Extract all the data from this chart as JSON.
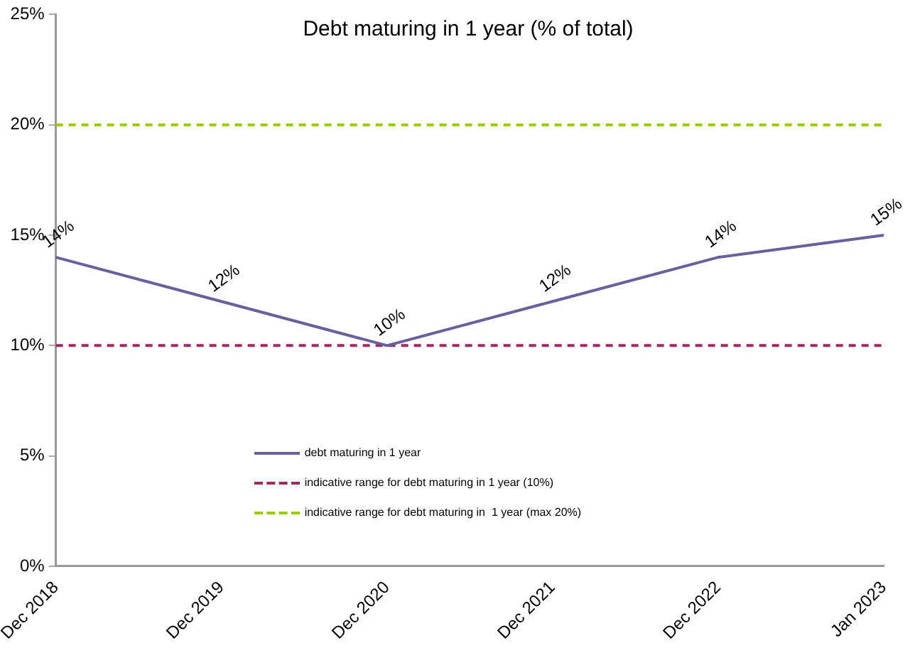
{
  "chart_data": {
    "type": "line",
    "title": "Debt maturing in 1 year (% of total)",
    "categories": [
      "Dec 2018",
      "Dec 2019",
      "Dec 2020",
      "Dec 2021",
      "Dec 2022",
      "Jan 2023"
    ],
    "series": [
      {
        "name": "debt maturing in 1 year",
        "color": "#6b5f9e",
        "values": [
          14,
          12,
          10,
          12,
          14,
          15
        ],
        "value_labels": [
          "14%",
          "12%",
          "10%",
          "12%",
          "14%",
          "15%"
        ]
      },
      {
        "name": "indicative range for debt maturing in 1 year (10%)",
        "color": "#a3285f",
        "values": [
          10,
          10,
          10,
          10,
          10,
          10
        ],
        "line_style": "dashed"
      },
      {
        "name": "indicative range for debt maturing in  1 year (max 20%)",
        "color": "#99cc00",
        "values": [
          20,
          20,
          20,
          20,
          20,
          20
        ],
        "line_style": "dashed"
      }
    ],
    "ylim": [
      0,
      25
    ],
    "yticks": [
      {
        "value": 0,
        "label": "0%"
      },
      {
        "value": 5,
        "label": "5%"
      },
      {
        "value": 10,
        "label": "10%"
      },
      {
        "value": 15,
        "label": "15%"
      },
      {
        "value": 20,
        "label": "20%"
      },
      {
        "value": 25,
        "label": "25%"
      }
    ],
    "grid": false,
    "legend": "bottom left",
    "marker": "none",
    "line_style": "solid"
  }
}
